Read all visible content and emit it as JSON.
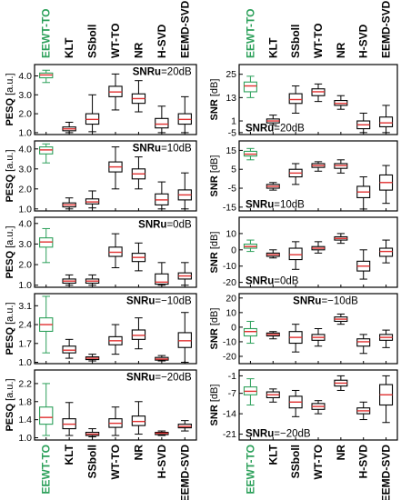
{
  "chart_data": {
    "type": "box",
    "methods": [
      "EEWT-TO",
      "KLT",
      "SSboll",
      "WT-TO",
      "NR",
      "H-SVD",
      "EEMD-SVD"
    ],
    "highlight_method": "EEWT-TO",
    "highlight_color": "#2ca05a",
    "median_color": "#e03030",
    "box_color": "#000000",
    "columns": [
      {
        "metric": "PESQ",
        "ylabel": "PESQ [a.u.]",
        "panels": [
          {
            "label": "SNRu=20dB",
            "ylim": [
              0.9,
              4.6
            ],
            "yticks": [
              1.0,
              2.0,
              3.0,
              4.0
            ],
            "yticklabels": [
              "1.0",
              "2.0",
              "3.0",
              "4.0"
            ],
            "boxes": [
              {
                "method": "EEWT-TO",
                "min": 3.65,
                "q1": 3.9,
                "median": 4.05,
                "q3": 4.15,
                "max": 4.3
              },
              {
                "method": "KLT",
                "min": 1.0,
                "q1": 1.1,
                "median": 1.2,
                "q3": 1.3,
                "max": 1.55
              },
              {
                "method": "SSboll",
                "min": 1.05,
                "q1": 1.45,
                "median": 1.7,
                "q3": 2.0,
                "max": 3.0
              },
              {
                "method": "WT-TO",
                "min": 2.2,
                "q1": 2.9,
                "median": 3.15,
                "q3": 3.45,
                "max": 4.1
              },
              {
                "method": "NR",
                "min": 2.1,
                "q1": 2.55,
                "median": 2.8,
                "q3": 3.05,
                "max": 3.75
              },
              {
                "method": "H-SVD",
                "min": 1.0,
                "q1": 1.25,
                "median": 1.45,
                "q3": 1.75,
                "max": 2.4
              },
              {
                "method": "EEMD-SVD",
                "min": 1.0,
                "q1": 1.45,
                "median": 1.7,
                "q3": 2.0,
                "max": 2.9
              }
            ]
          },
          {
            "label": "SNRu=10dB",
            "ylim": [
              0.9,
              4.4
            ],
            "yticks": [
              1.0,
              2.0,
              3.0,
              4.0
            ],
            "yticklabels": [
              "1.0",
              "2.0",
              "3.0",
              "4.0"
            ],
            "boxes": [
              {
                "method": "EEWT-TO",
                "min": 3.3,
                "q1": 3.75,
                "median": 3.95,
                "q3": 4.1,
                "max": 4.25
              },
              {
                "method": "KLT",
                "min": 1.0,
                "q1": 1.1,
                "median": 1.2,
                "q3": 1.3,
                "max": 1.55
              },
              {
                "method": "SSboll",
                "min": 1.05,
                "q1": 1.25,
                "median": 1.35,
                "q3": 1.5,
                "max": 1.9
              },
              {
                "method": "WT-TO",
                "min": 2.0,
                "q1": 2.85,
                "median": 3.1,
                "q3": 3.35,
                "max": 4.1
              },
              {
                "method": "NR",
                "min": 2.0,
                "q1": 2.5,
                "median": 2.75,
                "q3": 3.0,
                "max": 3.6
              },
              {
                "method": "H-SVD",
                "min": 1.0,
                "q1": 1.2,
                "median": 1.45,
                "q3": 1.75,
                "max": 2.35
              },
              {
                "method": "EEMD-SVD",
                "min": 1.0,
                "q1": 1.45,
                "median": 1.7,
                "q3": 1.95,
                "max": 2.8
              }
            ]
          },
          {
            "label": "SNRu=0dB",
            "ylim": [
              0.9,
              4.3
            ],
            "yticks": [
              1.0,
              2.0,
              3.0,
              4.0
            ],
            "yticklabels": [
              "1.0",
              "2.0",
              "3.0",
              "4.0"
            ],
            "boxes": [
              {
                "method": "EEWT-TO",
                "min": 2.1,
                "q1": 2.85,
                "median": 3.1,
                "q3": 3.3,
                "max": 3.75
              },
              {
                "method": "KLT",
                "min": 1.0,
                "q1": 1.1,
                "median": 1.2,
                "q3": 1.3,
                "max": 1.5
              },
              {
                "method": "SSboll",
                "min": 1.0,
                "q1": 1.1,
                "median": 1.2,
                "q3": 1.3,
                "max": 1.5
              },
              {
                "method": "WT-TO",
                "min": 1.85,
                "q1": 2.4,
                "median": 2.6,
                "q3": 2.85,
                "max": 3.5
              },
              {
                "method": "NR",
                "min": 1.7,
                "q1": 2.15,
                "median": 2.35,
                "q3": 2.55,
                "max": 3.05
              },
              {
                "method": "H-SVD",
                "min": 1.0,
                "q1": 1.05,
                "median": 1.15,
                "q3": 1.55,
                "max": 2.1
              },
              {
                "method": "EEMD-SVD",
                "min": 1.0,
                "q1": 1.3,
                "median": 1.45,
                "q3": 1.6,
                "max": 2.1
              }
            ]
          },
          {
            "label": "SNRu=−10dB",
            "ylim": [
              0.95,
              3.55
            ],
            "yticks": [
              1.0,
              1.7,
              2.4,
              3.1
            ],
            "yticklabels": [
              "1.0",
              "1.7",
              "2.4",
              "3.1"
            ],
            "boxes": [
              {
                "method": "EEWT-TO",
                "min": 1.35,
                "q1": 2.15,
                "median": 2.4,
                "q3": 2.65,
                "max": 3.45
              },
              {
                "method": "KLT",
                "min": 1.15,
                "q1": 1.35,
                "median": 1.45,
                "q3": 1.6,
                "max": 1.85
              },
              {
                "method": "SSboll",
                "min": 1.05,
                "q1": 1.1,
                "median": 1.15,
                "q3": 1.2,
                "max": 1.3
              },
              {
                "method": "WT-TO",
                "min": 1.3,
                "q1": 1.65,
                "median": 1.8,
                "q3": 1.95,
                "max": 2.4
              },
              {
                "method": "NR",
                "min": 1.5,
                "q1": 1.85,
                "median": 2.0,
                "q3": 2.2,
                "max": 2.65
              },
              {
                "method": "H-SVD",
                "min": 1.05,
                "q1": 1.08,
                "median": 1.12,
                "q3": 1.18,
                "max": 1.25
              },
              {
                "method": "EEMD-SVD",
                "min": 1.0,
                "q1": 1.55,
                "median": 1.8,
                "q3": 2.1,
                "max": 2.85
              }
            ]
          },
          {
            "label": "SNRu=−20dB",
            "ylim": [
              0.95,
              2.5
            ],
            "yticks": [
              1.0,
              1.4,
              1.8,
              2.2
            ],
            "yticklabels": [
              "1.0",
              "1.4",
              "1.8",
              "2.2"
            ],
            "boxes": [
              {
                "method": "EEWT-TO",
                "min": 1.05,
                "q1": 1.3,
                "median": 1.45,
                "q3": 1.68,
                "max": 2.2
              },
              {
                "method": "KLT",
                "min": 1.05,
                "q1": 1.2,
                "median": 1.3,
                "q3": 1.42,
                "max": 1.78
              },
              {
                "method": "SSboll",
                "min": 1.02,
                "q1": 1.05,
                "median": 1.08,
                "q3": 1.12,
                "max": 1.2
              },
              {
                "method": "WT-TO",
                "min": 1.05,
                "q1": 1.23,
                "median": 1.32,
                "q3": 1.42,
                "max": 1.68
              },
              {
                "method": "NR",
                "min": 1.08,
                "q1": 1.27,
                "median": 1.36,
                "q3": 1.48,
                "max": 1.8
              },
              {
                "method": "H-SVD",
                "min": 1.05,
                "q1": 1.07,
                "median": 1.1,
                "q3": 1.12,
                "max": 1.15
              },
              {
                "method": "EEMD-SVD",
                "min": 1.15,
                "q1": 1.22,
                "median": 1.25,
                "q3": 1.3,
                "max": 1.38
              }
            ]
          }
        ]
      },
      {
        "metric": "SNR",
        "ylabel": "SNR [dB]",
        "panels": [
          {
            "label": "SNRu=20dB",
            "ylim": [
              -6,
              30
            ],
            "yticks": [
              -5,
              1,
              13,
              25
            ],
            "yticklabels": [
              "-5",
              "1",
              "13",
              "25"
            ],
            "boxes": [
              {
                "method": "EEWT-TO",
                "min": 13,
                "q1": 16,
                "median": 19,
                "q3": 21,
                "max": 24
              },
              {
                "method": "KLT",
                "min": -1,
                "q1": 0,
                "median": 1,
                "q3": 2,
                "max": 4
              },
              {
                "method": "SSboll",
                "min": 5,
                "q1": 10,
                "median": 12,
                "q3": 15,
                "max": 19
              },
              {
                "method": "WT-TO",
                "min": 11,
                "q1": 14,
                "median": 16,
                "q3": 17.5,
                "max": 20
              },
              {
                "method": "NR",
                "min": 7,
                "q1": 9,
                "median": 10,
                "q3": 11.5,
                "max": 14
              },
              {
                "method": "H-SVD",
                "min": -5,
                "q1": -3,
                "median": -1,
                "q3": 1,
                "max": 5
              },
              {
                "method": "EEMD-SVD",
                "min": -5,
                "q1": -2,
                "median": 0,
                "q3": 3,
                "max": 9
              }
            ]
          },
          {
            "label": "SNRu=10dB",
            "ylim": [
              -17,
              20
            ],
            "yticks": [
              -15,
              -5,
              5,
              15
            ],
            "yticklabels": [
              "-15",
              "-5",
              "5",
              "15"
            ],
            "boxes": [
              {
                "method": "EEWT-TO",
                "min": 10,
                "q1": 12,
                "median": 13,
                "q3": 14.5,
                "max": 16
              },
              {
                "method": "KLT",
                "min": -6,
                "q1": -5,
                "median": -4,
                "q3": -3,
                "max": -2
              },
              {
                "method": "SSboll",
                "min": -3,
                "q1": 1,
                "median": 3,
                "q3": 5,
                "max": 8
              },
              {
                "method": "WT-TO",
                "min": 4,
                "q1": 6,
                "median": 7,
                "q3": 8,
                "max": 9
              },
              {
                "method": "NR",
                "min": 3,
                "q1": 5.5,
                "median": 7,
                "q3": 8,
                "max": 10
              },
              {
                "method": "H-SVD",
                "min": -16,
                "q1": -10,
                "median": -7,
                "q3": -4,
                "max": 1
              },
              {
                "method": "EEMD-SVD",
                "min": -13,
                "q1": -6,
                "median": -2,
                "q3": 2,
                "max": 7
              }
            ]
          },
          {
            "label": "SNRu=0dB",
            "ylim": [
              -23,
              20
            ],
            "yticks": [
              -20,
              -10,
              0,
              10
            ],
            "yticklabels": [
              "-20",
              "-10",
              "0",
              "10"
            ],
            "boxes": [
              {
                "method": "EEWT-TO",
                "min": -1,
                "q1": 1,
                "median": 2,
                "q3": 3.5,
                "max": 6
              },
              {
                "method": "KLT",
                "min": -5,
                "q1": -4,
                "median": -3,
                "q3": -2,
                "max": 0
              },
              {
                "method": "SSboll",
                "min": -12,
                "q1": -6,
                "median": -3,
                "q3": 1,
                "max": 5
              },
              {
                "method": "WT-TO",
                "min": -2,
                "q1": 0,
                "median": 1,
                "q3": 2,
                "max": 5
              },
              {
                "method": "NR",
                "min": 4,
                "q1": 6,
                "median": 7,
                "q3": 8,
                "max": 10
              },
              {
                "method": "H-SVD",
                "min": -18,
                "q1": -13,
                "median": -10,
                "q3": -7,
                "max": 0
              },
              {
                "method": "EEMD-SVD",
                "min": -8,
                "q1": -4,
                "median": -1,
                "q3": 1,
                "max": 6
              }
            ]
          },
          {
            "label": "SNRu=−10dB",
            "ylim": [
              -25,
              23
            ],
            "yticks": [
              -20,
              -10,
              0,
              10,
              20
            ],
            "yticklabels": [
              "-20",
              "-10",
              "0",
              "10",
              "20"
            ],
            "boxes": [
              {
                "method": "EEWT-TO",
                "min": -11,
                "q1": -6,
                "median": -3,
                "q3": -1,
                "max": 4
              },
              {
                "method": "KLT",
                "min": -8,
                "q1": -6,
                "median": -5,
                "q3": -4,
                "max": -3
              },
              {
                "method": "SSboll",
                "min": -17,
                "q1": -11,
                "median": -7,
                "q3": -3,
                "max": 2
              },
              {
                "method": "WT-TO",
                "min": -13,
                "q1": -9,
                "median": -7,
                "q3": -5,
                "max": -1
              },
              {
                "method": "NR",
                "min": 2,
                "q1": 4,
                "median": 5.5,
                "q3": 7,
                "max": 9
              },
              {
                "method": "H-SVD",
                "min": -18,
                "q1": -13,
                "median": -10,
                "q3": -8,
                "max": -5
              },
              {
                "method": "EEMD-SVD",
                "min": -14,
                "q1": -9,
                "median": -7,
                "q3": -5,
                "max": -2
              }
            ]
          },
          {
            "label": "SNRu=−20dB",
            "ylim": [
              -23,
              1
            ],
            "yticks": [
              -21,
              -14,
              -7,
              -1
            ],
            "yticklabels": [
              "-21",
              "-14",
              "-7",
              "-1"
            ],
            "boxes": [
              {
                "method": "EEWT-TO",
                "min": -11,
                "q1": -7.5,
                "median": -6.3,
                "q3": -4.8,
                "max": -2
              },
              {
                "method": "KLT",
                "min": -10,
                "q1": -8.5,
                "median": -7.5,
                "q3": -6.5,
                "max": -5.5
              },
              {
                "method": "SSboll",
                "min": -15,
                "q1": -12,
                "median": -10,
                "q3": -8,
                "max": -6
              },
              {
                "method": "WT-TO",
                "min": -14,
                "q1": -12.5,
                "median": -11.5,
                "q3": -10.5,
                "max": -9.5
              },
              {
                "method": "NR",
                "min": -6,
                "q1": -4.5,
                "median": -3.5,
                "q3": -2.5,
                "max": -1
              },
              {
                "method": "H-SVD",
                "min": -16,
                "q1": -14,
                "median": -13,
                "q3": -12,
                "max": -10
              },
              {
                "method": "EEMD-SVD",
                "min": -17,
                "q1": -11,
                "median": -7.5,
                "q3": -4,
                "max": -1
              }
            ]
          }
        ]
      }
    ]
  }
}
